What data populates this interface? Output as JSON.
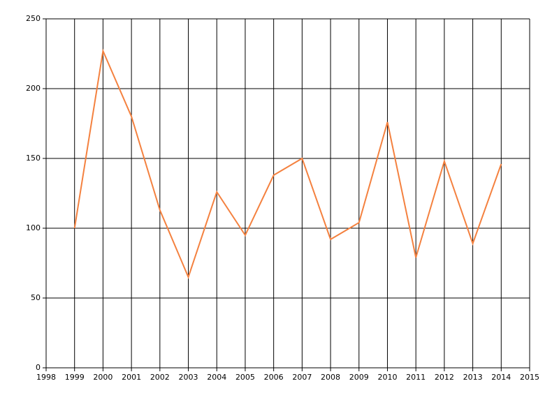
{
  "chart_data": {
    "type": "line",
    "x": [
      1999,
      2000,
      2001,
      2002,
      2003,
      2004,
      2005,
      2006,
      2007,
      2008,
      2009,
      2010,
      2011,
      2012,
      2013,
      2014
    ],
    "series": [
      {
        "color": "#f4813f",
        "values": [
          100,
          227,
          180,
          113,
          65,
          126,
          95,
          138,
          150,
          92,
          104,
          176,
          79,
          148,
          89,
          146
        ]
      }
    ],
    "xlim": [
      1998,
      2015
    ],
    "xticks": [
      1998,
      1999,
      2000,
      2001,
      2002,
      2003,
      2004,
      2005,
      2006,
      2007,
      2008,
      2009,
      2010,
      2011,
      2012,
      2013,
      2014,
      2015
    ],
    "ylim": [
      0,
      250
    ],
    "yticks": [
      0,
      50,
      100,
      150,
      200,
      250
    ],
    "grid": true
  }
}
